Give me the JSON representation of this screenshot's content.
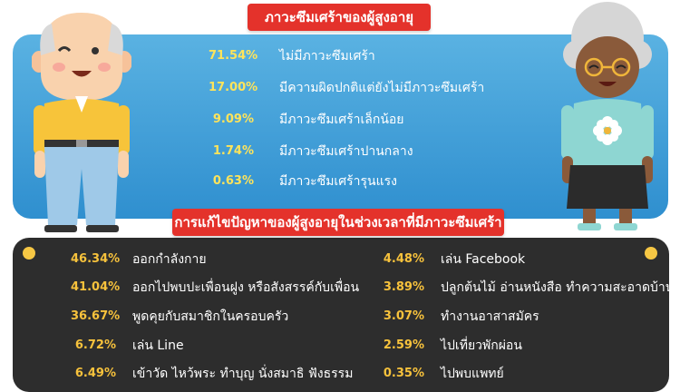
{
  "top": {
    "title": "ภาวะซึมเศร้าของผู้สูงอายุ",
    "items": [
      {
        "pct": "71.54%",
        "label": "ไม่มีภาวะซึมเศร้า"
      },
      {
        "pct": "17.00%",
        "label": "มีความผิดปกติแต่ยังไม่มีภาวะซึมเศร้า"
      },
      {
        "pct": "9.09%",
        "label": "มีภาวะซึมเศร้าเล็กน้อย"
      },
      {
        "pct": "1.74%",
        "label": "มีภาวะซึมเศร้าปานกลาง"
      },
      {
        "pct": "0.63%",
        "label": "มีภาวะซึมเศร้ารุนแรง"
      }
    ]
  },
  "bottom": {
    "title": "การแก้ไขปัญหาของผู้สูงอายุในช่วงเวลาที่มีภาวะซึมเศร้า",
    "left": [
      {
        "pct": "46.34%",
        "label": "ออกกำลังกาย"
      },
      {
        "pct": "41.04%",
        "label": "ออกไปพบปะเพื่อนฝูง หรือสังสรรค์กับเพื่อน"
      },
      {
        "pct": "36.67%",
        "label": "พูดคุยกับสมาชิกในครอบครัว"
      },
      {
        "pct": "6.72%",
        "label": "เล่น Line"
      },
      {
        "pct": "6.49%",
        "label": "เข้าวัด ไหว้พระ ทำบุญ นั่งสมาธิ ฟังธรรม"
      }
    ],
    "right": [
      {
        "pct": "4.48%",
        "label": "เล่น Facebook"
      },
      {
        "pct": "3.89%",
        "label": "ปลูกต้นไม้ อ่านหนังสือ ทำความสะอาดบ้าน"
      },
      {
        "pct": "3.07%",
        "label": "ทำงานอาสาสมัคร"
      },
      {
        "pct": "2.59%",
        "label": "ไปเที่ยวพักผ่อน"
      },
      {
        "pct": "0.35%",
        "label": "ไปพบแพทย์"
      }
    ]
  },
  "colors": {
    "banner": "#e4322b",
    "panel_blue": "#3a9ad6",
    "panel_dark": "#2d2d2d",
    "pct_yellow": "#f7c23c",
    "text_white": "#ffffff"
  },
  "figures": [
    {
      "name": "elderly-man",
      "icon": "elderly-man-illustration"
    },
    {
      "name": "elderly-woman",
      "icon": "elderly-woman-illustration"
    }
  ]
}
